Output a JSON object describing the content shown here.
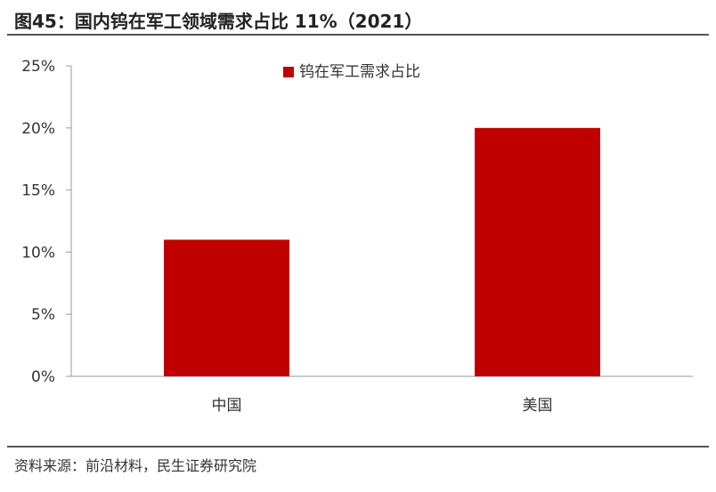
{
  "title": "图45：国内钨在军工领域需求占比 11%（2021）",
  "source": "资料来源：前沿材料，民生证券研究院",
  "colors": {
    "bar": "#c00000",
    "axis": "#999999",
    "text": "#333333"
  },
  "chart_data": {
    "type": "bar",
    "categories": [
      "中国",
      "美国"
    ],
    "series": [
      {
        "name": "钨在军工需求占比",
        "values": [
          11,
          20
        ]
      }
    ],
    "y_ticks": [
      "0%",
      "5%",
      "10%",
      "15%",
      "20%",
      "25%"
    ],
    "ylim": [
      0,
      25
    ],
    "grid": false,
    "legend": "top-center"
  }
}
